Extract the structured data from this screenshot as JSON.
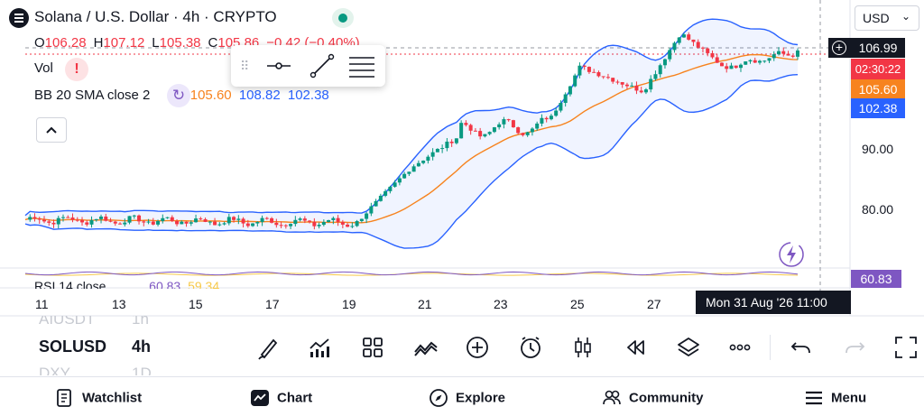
{
  "header": {
    "title": "Solana / U.S. Dollar · 4h · CRYPTO",
    "ohlc": {
      "o_label": "O",
      "o": "106.28",
      "h_label": "H",
      "h": "107.12",
      "l_label": "L",
      "l": "105.38",
      "c_label": "C",
      "c": "105.86",
      "change": "−0.42 (−0.40%)"
    },
    "vol_label": "Vol",
    "bb_label": "BB 20 SMA close 2",
    "bb_basis": "105.60",
    "bb_upper": "108.82",
    "bb_lower": "102.38",
    "colors": {
      "up": "#089981",
      "down": "#f23645",
      "basis": "#f7831e",
      "band": "#2962ff",
      "rsi": "#7e57c2"
    }
  },
  "price_scale": {
    "currency": "USD",
    "last_price": "106.99",
    "countdown": "02:30:22",
    "basis_tag": "105.60",
    "lower_tag": "102.38",
    "ticks": [
      "90.00",
      "80.00"
    ]
  },
  "rsi": {
    "label": "RSI 14 close",
    "value": "60.83",
    "ma": "59.34",
    "tag": "60.83"
  },
  "time_axis": {
    "labels": [
      "11",
      "13",
      "15",
      "17",
      "19",
      "21",
      "23",
      "25",
      "27"
    ],
    "crosshair_time": "Mon 31 Aug '26   11:00"
  },
  "symbol_switcher": {
    "prev": "AIUSDT",
    "prev_tf": "1h",
    "current": "SOLUSD",
    "current_tf": "4h",
    "next": "DXY",
    "next_tf": "1D"
  },
  "toolbar": {
    "icons": [
      "brush-icon",
      "indicators-icon",
      "templates-icon",
      "chart-type-icon",
      "add-icon",
      "alert-icon",
      "candles-icon",
      "replay-icon",
      "layers-icon",
      "more-icon",
      "undo-icon",
      "redo-icon",
      "fullscreen-icon"
    ]
  },
  "bottom_nav": [
    {
      "label": "Watchlist",
      "icon": "watchlist-icon"
    },
    {
      "label": "Chart",
      "icon": "chart-icon"
    },
    {
      "label": "Explore",
      "icon": "compass-icon"
    },
    {
      "label": "Community",
      "icon": "community-icon"
    },
    {
      "label": "Menu",
      "icon": "menu-icon"
    }
  ]
}
